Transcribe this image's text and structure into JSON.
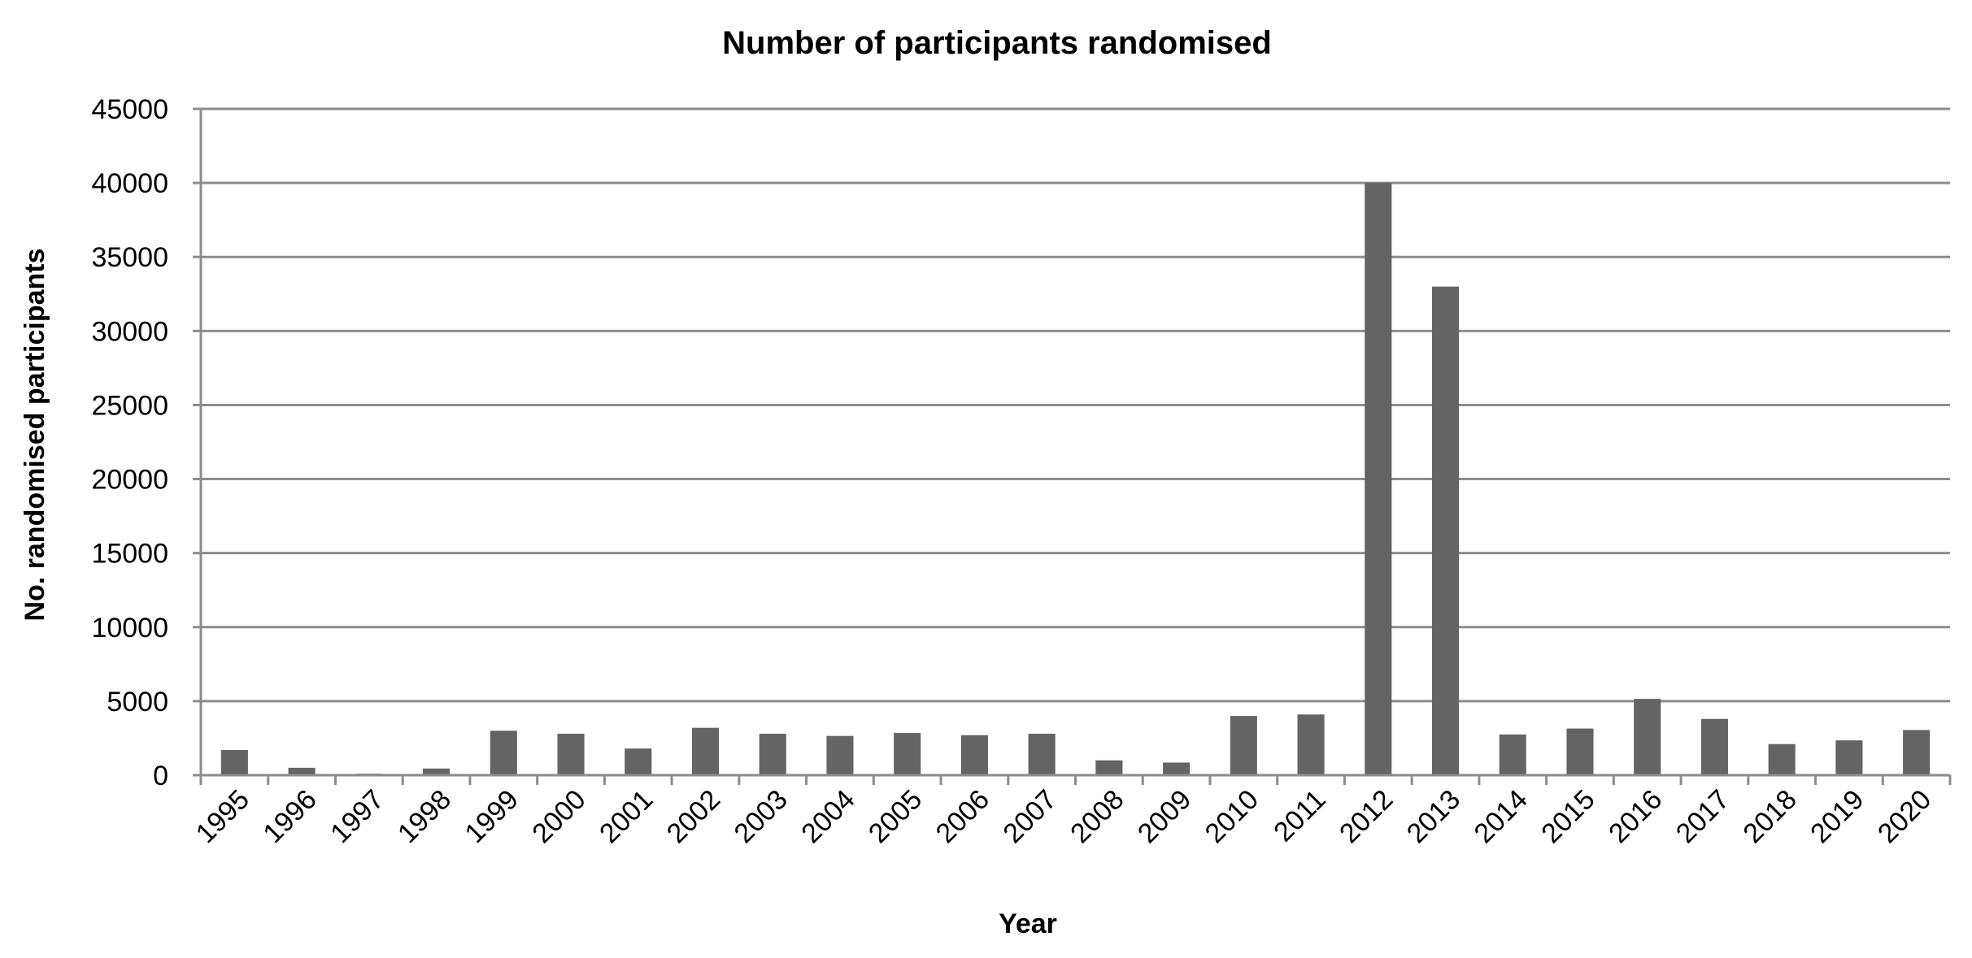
{
  "chart_data": {
    "type": "bar",
    "title": "Number of participants randomised",
    "xlabel": "Year",
    "ylabel": "No. randomised participants",
    "categories": [
      "1995",
      "1996",
      "1997",
      "1998",
      "1999",
      "2000",
      "2001",
      "2002",
      "2003",
      "2004",
      "2005",
      "2006",
      "2007",
      "2008",
      "2009",
      "2010",
      "2011",
      "2012",
      "2013",
      "2014",
      "2015",
      "2016",
      "2017",
      "2018",
      "2019",
      "2020"
    ],
    "values": [
      1700,
      500,
      100,
      450,
      3000,
      2800,
      1800,
      3200,
      2800,
      2650,
      2850,
      2700,
      2800,
      1000,
      850,
      4000,
      4100,
      40000,
      33000,
      2750,
      3150,
      5150,
      3800,
      2100,
      2350,
      3050
    ],
    "ylim": [
      0,
      45000
    ],
    "yticks": [
      "0",
      "5000",
      "10000",
      "15000",
      "20000",
      "25000",
      "30000",
      "35000",
      "40000",
      "45000"
    ],
    "grid": true,
    "legend": "none",
    "bar_color": "#646464",
    "grid_color": "#8c8c8c",
    "axis_color": "#8c8c8c"
  }
}
